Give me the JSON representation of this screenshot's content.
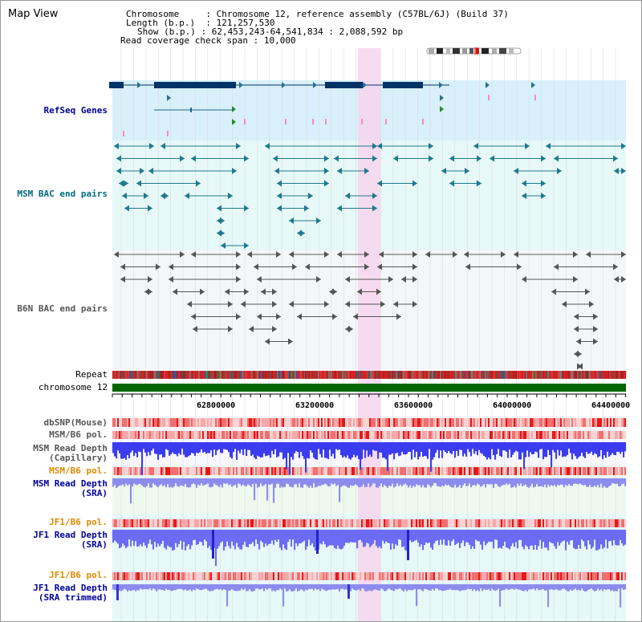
{
  "title": "Map View",
  "header": {
    "chromosome_key": "Chromosome",
    "chromosome_val": "Chromosome 12, reference assembly (C57BL/6J) (Build 37)",
    "length_key": "Length (b.p.)",
    "length_val": "121,257,530",
    "show_key": "Show (b.p.)",
    "show_val": "62,453,243-64,541,834 : 2,088,592 bp",
    "coverage_key": "Read coverage check span",
    "coverage_val": "10,000"
  },
  "tracks": {
    "refseq": "RefSeq Genes",
    "msm_bac": "MSM BAC end pairs",
    "b6n_bac": "B6N BAC end pairs",
    "repeat": "Repeat",
    "chromosome": "chromosome 12",
    "dbsnp": "dbSNP(Mouse)",
    "msm_b6_pol_1": "MSM/B6 pol.",
    "msm_depth_cap_1": "MSM Read Depth",
    "msm_depth_cap_2": "(Capillary)",
    "msm_b6_pol_2": "MSM/B6 pol.",
    "msm_depth_sra_1": "MSM Read Depth",
    "msm_depth_sra_2": "(SRA)",
    "jf1_b6_pol_1": "JF1/B6 pol.",
    "jf1_depth_sra_1": "JF1 Read Depth",
    "jf1_depth_sra_2": "(SRA)",
    "jf1_b6_pol_2": "JF1/B6 pol.",
    "jf1_trim_1": "JF1 Read Depth",
    "jf1_trim_2": "(SRA trimmed)"
  },
  "axis": {
    "ticks": [
      "62800000",
      "63200000",
      "63600000",
      "64000000",
      "64400000"
    ]
  },
  "colors": {
    "refseq_bg": "#d8f0fb",
    "msm_bac_bg": "#e6f8f8",
    "b6n_bg": "#f4f7f9",
    "highlight": "#f6d6ef",
    "gene_dark": "#003366",
    "bac_teal": "#1f7a8c",
    "b6n_gray": "#555555",
    "chromosome_bar": "#006600",
    "label_blue": "#000099",
    "label_teal": "#006b80",
    "label_gray": "#555555",
    "label_orange": "#e08a00"
  }
}
